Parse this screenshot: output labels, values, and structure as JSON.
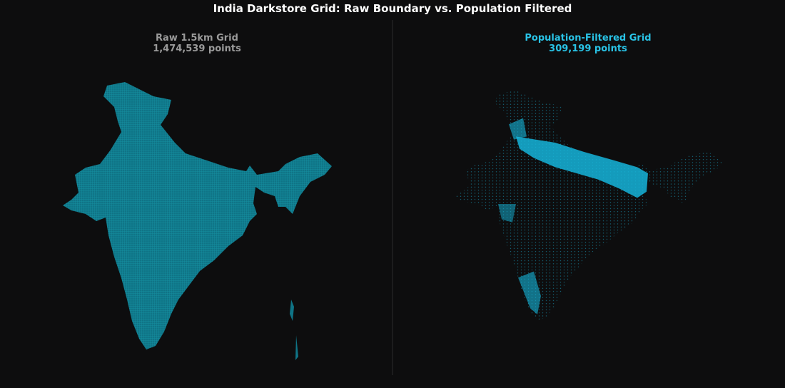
{
  "header": {
    "title": "India Darkstore Grid: Raw Boundary vs. Population Filtered"
  },
  "panels": [
    {
      "title": "Raw 1.5km Grid",
      "subtitle": "1,474,539 points"
    },
    {
      "title": "Population-Filtered Grid",
      "subtitle": "309,199 points"
    }
  ]
}
